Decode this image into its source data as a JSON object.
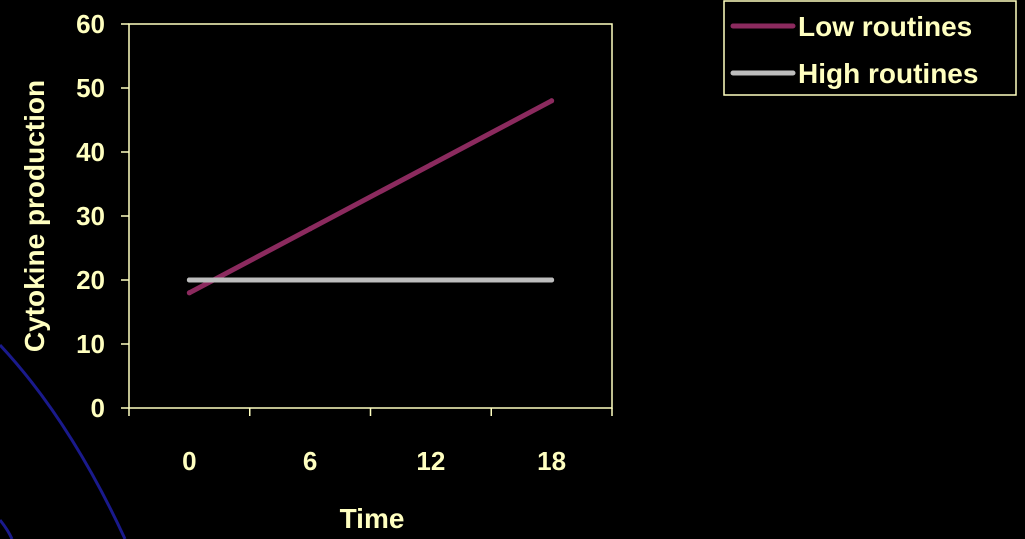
{
  "chart_data": {
    "type": "line",
    "title": "",
    "xlabel": "Time",
    "ylabel": "Cytokine production",
    "categories": [
      "0",
      "6",
      "12",
      "18"
    ],
    "ylim": [
      0,
      60
    ],
    "yticks": [
      0,
      10,
      20,
      30,
      40,
      50,
      60
    ],
    "grid": false,
    "legend_position": "top-right",
    "series": [
      {
        "name": "Low routines",
        "color": "#8b2a5e",
        "values": [
          18,
          28,
          38,
          48
        ]
      },
      {
        "name": "High routines",
        "color": "#bdbdbd",
        "values": [
          20,
          20,
          20,
          20
        ]
      }
    ],
    "colors": {
      "background": "#000000",
      "text": "#ffffc0",
      "axis": "#ffffc0",
      "decor_arc": "#1a1a8c"
    }
  }
}
